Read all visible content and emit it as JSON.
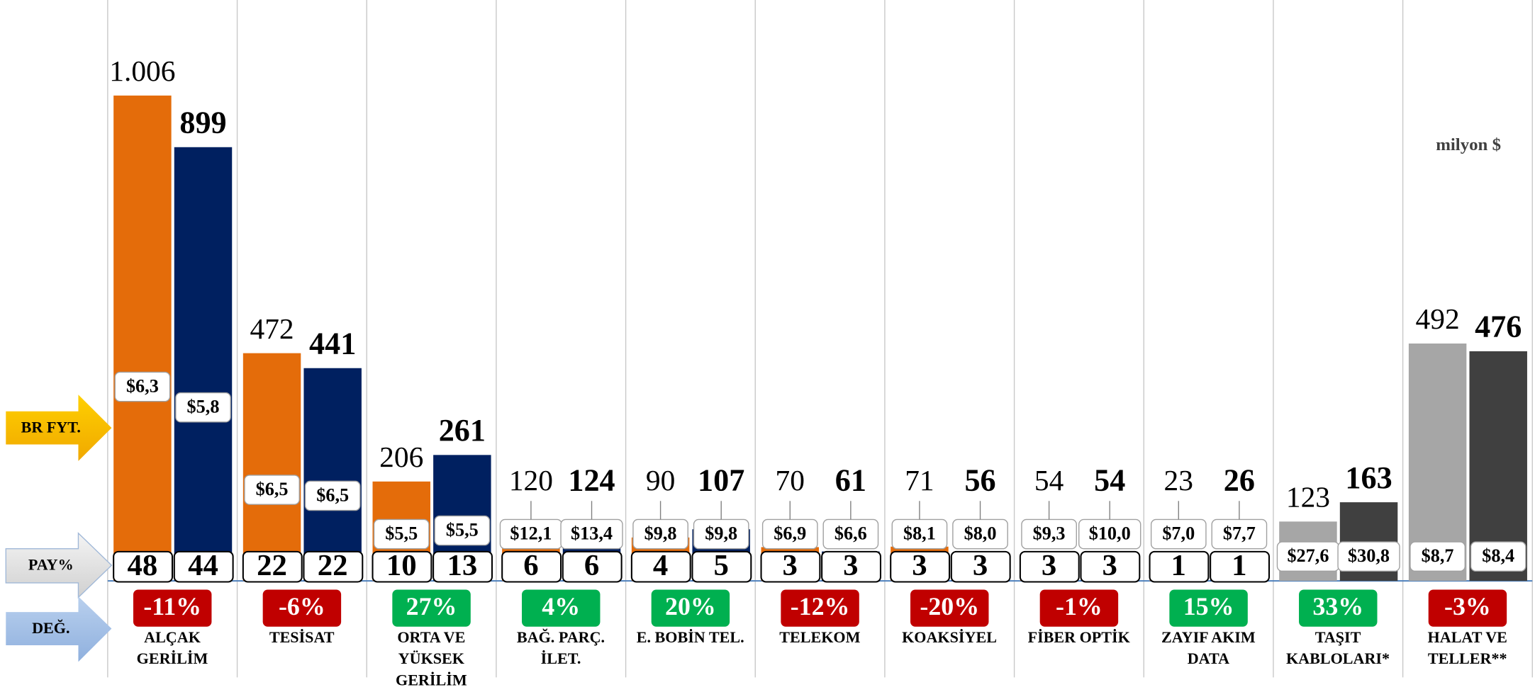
{
  "chart_data": {
    "type": "bar",
    "unit_note": "milyon $",
    "row_labels": {
      "price": "BR FYT.",
      "share": "PAY%",
      "change": "DEĞ."
    },
    "categories": [
      "ALÇAK\nGERİLİM",
      "TESİSAT",
      "ORTA VE\nYÜKSEK\nGERİLİM",
      "BAĞ. PARÇ.\nİLET.",
      "E. BOBİN TEL.",
      "TELEKOM",
      "KOAKSİYEL",
      "FİBER OPTİK",
      "ZAYIF AKIM\nDATA",
      "TAŞIT\nKABLOLARI*",
      "HALAT VE\nTELLER**"
    ],
    "ylim": [
      0,
      1200
    ],
    "series": [
      {
        "colors": [
          "#E46C0A",
          "#E46C0A",
          "#E46C0A",
          "#E46C0A",
          "#E46C0A",
          "#E46C0A",
          "#E46C0A",
          "#E46C0A",
          "#E46C0A",
          "#A6A6A6",
          "#A6A6A6"
        ],
        "values": [
          1006,
          472,
          206,
          120,
          90,
          70,
          71,
          54,
          23,
          123,
          492
        ],
        "value_labels": [
          "1.006",
          "472",
          "206",
          "120",
          "90",
          "70",
          "71",
          "54",
          "23",
          "123",
          "492"
        ],
        "unit_prices": [
          6.3,
          6.5,
          5.5,
          12.1,
          9.8,
          6.9,
          8.1,
          9.3,
          7.0,
          27.6,
          8.7
        ],
        "unit_price_labels": [
          "$6,3",
          "$6,5",
          "$5,5",
          "$12,1",
          "$9,8",
          "$6,9",
          "$8,1",
          "$9,3",
          "$7,0",
          "$27,6",
          "$8,7"
        ],
        "shares": [
          48,
          22,
          10,
          6,
          4,
          3,
          3,
          3,
          1,
          null,
          null
        ]
      },
      {
        "colors": [
          "#002060",
          "#002060",
          "#002060",
          "#002060",
          "#002060",
          "#002060",
          "#002060",
          "#002060",
          "#002060",
          "#404040",
          "#404040"
        ],
        "values": [
          899,
          441,
          261,
          124,
          107,
          61,
          56,
          54,
          26,
          163,
          476
        ],
        "unit_prices": [
          5.8,
          6.5,
          5.5,
          13.4,
          9.8,
          6.6,
          8.0,
          10.0,
          7.7,
          30.8,
          8.4
        ],
        "unit_price_labels": [
          "$5,8",
          "$6,5",
          "$5,5",
          "$13,4",
          "$9,8",
          "$6,6",
          "$8,0",
          "$10,0",
          "$7,7",
          "$30,8",
          "$8,4"
        ],
        "shares": [
          44,
          22,
          13,
          6,
          5,
          3,
          3,
          3,
          1,
          null,
          null
        ]
      }
    ],
    "changes": [
      -11,
      -6,
      27,
      4,
      20,
      -12,
      -20,
      -1,
      15,
      33,
      -3
    ],
    "change_labels": [
      "-11%",
      "-6%",
      "27%",
      "4%",
      "20%",
      "-12%",
      "-20%",
      "-1%",
      "15%",
      "33%",
      "-3%"
    ]
  }
}
